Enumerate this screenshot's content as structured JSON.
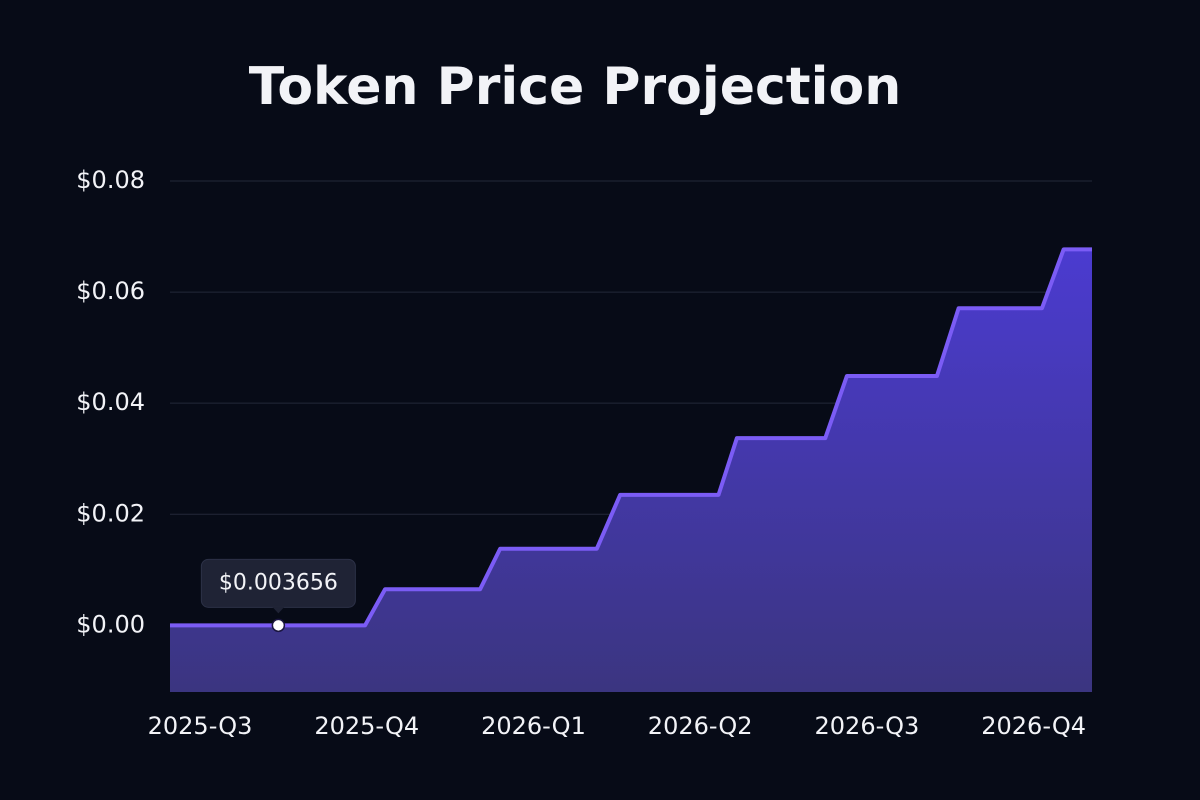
{
  "chart_data": {
    "type": "area",
    "title": "Token Price Projection",
    "x": [
      -0.18,
      0.99,
      1.11,
      1.68,
      1.8,
      2.38,
      2.52,
      3.11,
      3.22,
      3.75,
      3.88,
      4.42,
      4.55,
      5.05,
      5.18,
      5.35
    ],
    "series": [
      {
        "color": "#7b5cf5",
        "values": [
          0,
          0,
          0.0065,
          0.0065,
          0.0138,
          0.0138,
          0.0235,
          0.0235,
          0.0337,
          0.0337,
          0.0449,
          0.0449,
          0.0571,
          0.0571,
          0.0677,
          0.0677
        ]
      }
    ],
    "xlim": [
      -0.18,
      5.35
    ],
    "xticks": [
      {
        "value": 0,
        "label": "2025-Q3"
      },
      {
        "value": 1,
        "label": "2025-Q4"
      },
      {
        "value": 2,
        "label": "2026-Q1"
      },
      {
        "value": 3,
        "label": "2026-Q2"
      },
      {
        "value": 4,
        "label": "2026-Q3"
      },
      {
        "value": 5,
        "label": "2026-Q4"
      }
    ],
    "ylim": [
      -0.012,
      0.08
    ],
    "yticks": [
      {
        "value": 0,
        "label": "$0.00"
      },
      {
        "value": 0.02,
        "label": "$0.02"
      },
      {
        "value": 0.04,
        "label": "$0.04"
      },
      {
        "value": 0.06,
        "label": "$0.06"
      },
      {
        "value": 0.08,
        "label": "$0.08"
      }
    ],
    "grid": true,
    "annotations": [
      {
        "x": 0.47,
        "text": "$0.003656"
      }
    ]
  }
}
